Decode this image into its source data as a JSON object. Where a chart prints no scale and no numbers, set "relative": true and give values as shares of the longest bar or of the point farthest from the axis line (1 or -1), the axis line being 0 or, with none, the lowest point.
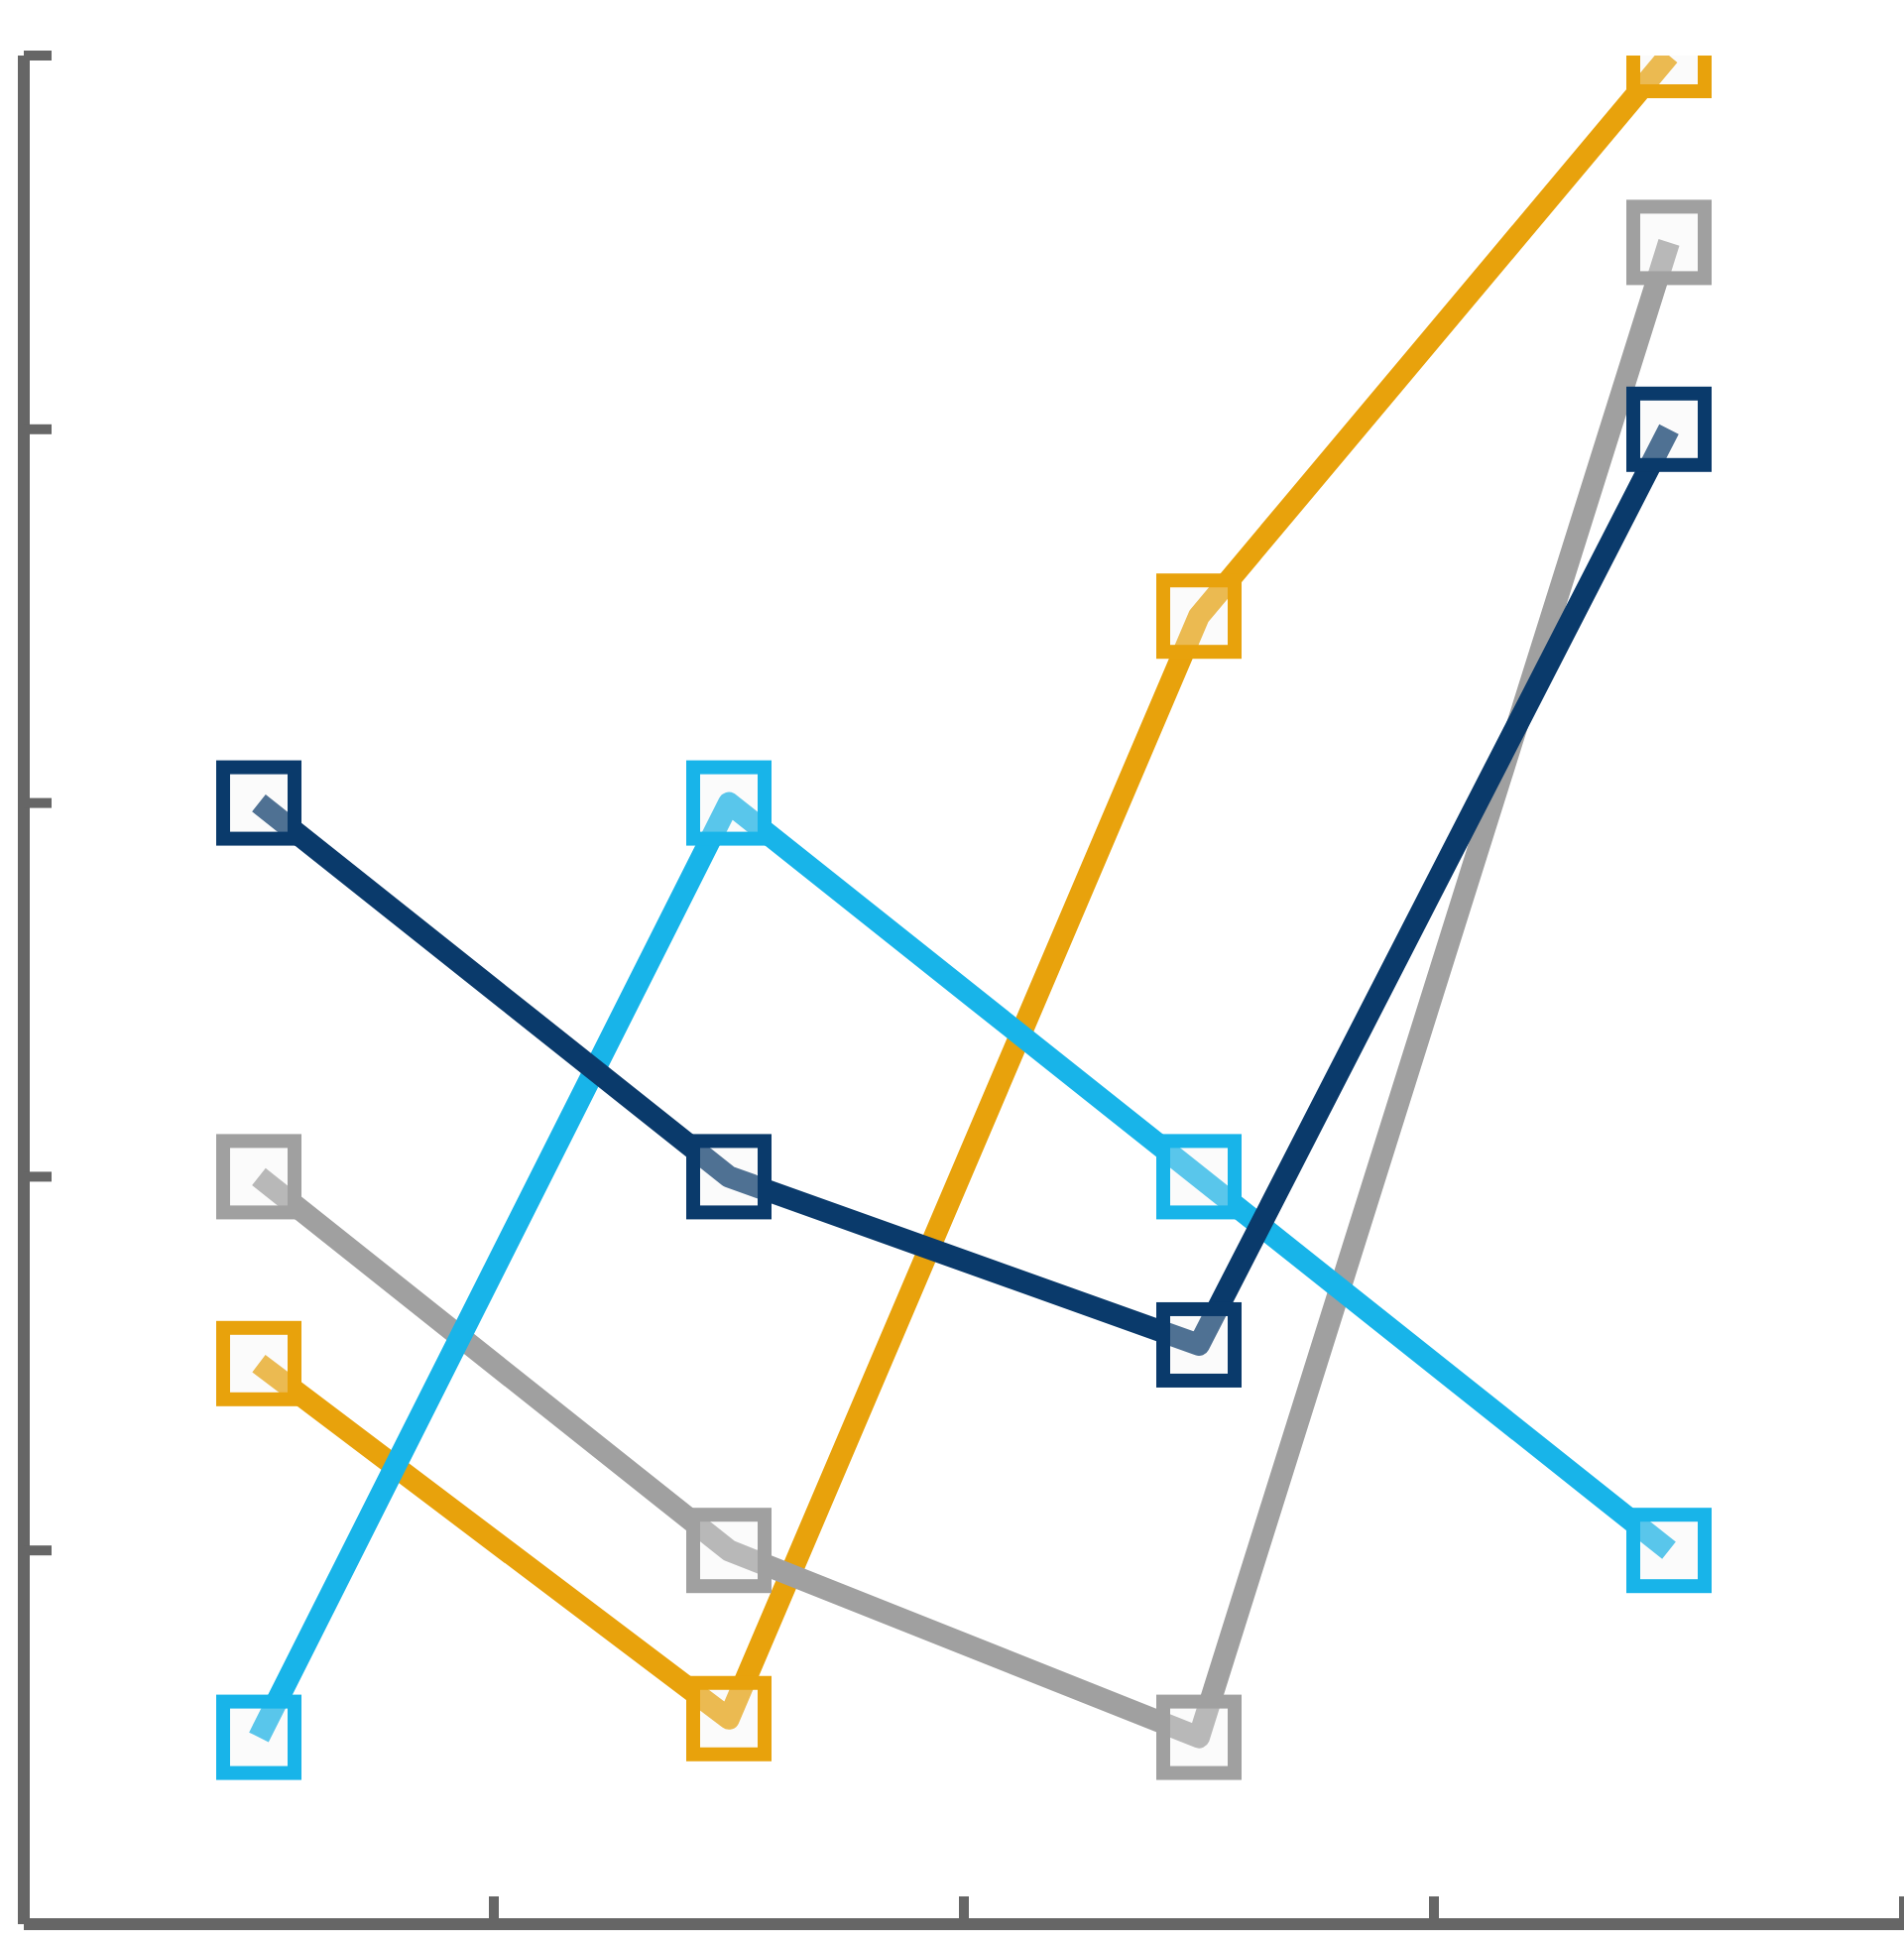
{
  "chart_data": {
    "type": "line",
    "relative": true,
    "marker": "square",
    "categories": [
      null,
      null,
      null,
      null
    ],
    "series": [
      {
        "color": "#e8a20c",
        "values": [
          0.3,
          0.11,
          0.7,
          1
        ]
      },
      {
        "color": "#a0a0a0",
        "values": [
          0.4,
          0.2,
          0.1,
          0.9
        ]
      },
      {
        "color": "#18b4e9",
        "values": [
          0.1,
          0.6,
          0.4,
          0.2
        ]
      },
      {
        "color": "#0a3a6b",
        "values": [
          0.6,
          0.4,
          0.31,
          0.8
        ]
      }
    ]
  }
}
